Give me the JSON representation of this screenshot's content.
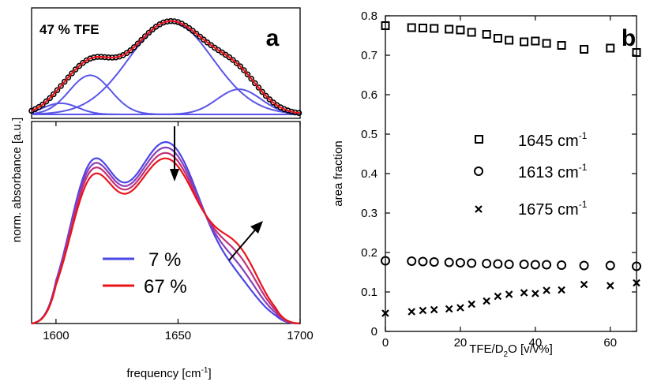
{
  "colors": {
    "blue": "#4b46e6",
    "red": "#e8141a",
    "fit": "#e8141a",
    "data": "#000000"
  },
  "panel_a": {
    "letter": "a",
    "top_label": "47 % TFE",
    "ylabel": "norm. absorbance [a.u.]",
    "xlabel_main": "frequency [cm",
    "xlabel_sup": "-1",
    "xlabel_end": "]",
    "xticks": [
      "1600",
      "1650",
      "1700"
    ],
    "legend": [
      {
        "label": "7 %",
        "color": "#4b46e6"
      },
      {
        "label": "67 %",
        "color": "#e8141a"
      }
    ]
  },
  "panel_b": {
    "letter": "b",
    "ylabel": "area fraction",
    "xlabel_main": "TFE/D",
    "xlabel_sub": "2",
    "xlabel_end": "O [v/v%]",
    "legend": [
      {
        "label": "1645 cm",
        "sup": "-1",
        "marker": "square"
      },
      {
        "label": "1613 cm",
        "sup": "-1",
        "marker": "circle"
      },
      {
        "label": "1675 cm",
        "sup": "-1",
        "marker": "x"
      }
    ]
  },
  "chart_data": [
    {
      "type": "line",
      "panel": "a-top",
      "xlim": [
        1590,
        1700
      ],
      "components": [
        {
          "center": 1602,
          "width": 7,
          "height": 0.12
        },
        {
          "center": 1614,
          "width": 8.5,
          "height": 0.42
        },
        {
          "center": 1647,
          "width": 17,
          "height": 1.0
        },
        {
          "center": 1675,
          "width": 9,
          "height": 0.27
        }
      ]
    },
    {
      "type": "line",
      "panel": "a-bottom",
      "xlim": [
        1590,
        1700
      ],
      "series": [
        {
          "tfe": 7,
          "p1": 0.72,
          "p2": 1.0,
          "p3": 0.1
        },
        {
          "tfe": 27,
          "p1": 0.7,
          "p2": 0.97,
          "p3": 0.14
        },
        {
          "tfe": 47,
          "p1": 0.68,
          "p2": 0.94,
          "p3": 0.18
        },
        {
          "tfe": 67,
          "p1": 0.66,
          "p2": 0.92,
          "p3": 0.22
        }
      ]
    },
    {
      "type": "scatter",
      "panel": "b",
      "xlim": [
        0,
        67
      ],
      "ylim": [
        0,
        0.8
      ],
      "xticks": [
        0,
        20,
        40,
        60
      ],
      "yticks": [
        0,
        0.1,
        0.2,
        0.3,
        0.4,
        0.5,
        0.6,
        0.7,
        0.8
      ],
      "series": [
        {
          "marker": "square",
          "points": [
            [
              0,
              0.775
            ],
            [
              7,
              0.77
            ],
            [
              10,
              0.769
            ],
            [
              13,
              0.768
            ],
            [
              17,
              0.766
            ],
            [
              20,
              0.764
            ],
            [
              23,
              0.758
            ],
            [
              27,
              0.753
            ],
            [
              30,
              0.743
            ],
            [
              33,
              0.738
            ],
            [
              37,
              0.734
            ],
            [
              40,
              0.736
            ],
            [
              43,
              0.73
            ],
            [
              47,
              0.725
            ],
            [
              53,
              0.715
            ],
            [
              60,
              0.718
            ],
            [
              67,
              0.707
            ]
          ]
        },
        {
          "marker": "circle",
          "points": [
            [
              0,
              0.179
            ],
            [
              7,
              0.178
            ],
            [
              10,
              0.177
            ],
            [
              13,
              0.176
            ],
            [
              17,
              0.175
            ],
            [
              20,
              0.174
            ],
            [
              23,
              0.173
            ],
            [
              27,
              0.172
            ],
            [
              30,
              0.171
            ],
            [
              33,
              0.17
            ],
            [
              37,
              0.17
            ],
            [
              40,
              0.169
            ],
            [
              43,
              0.169
            ],
            [
              47,
              0.168
            ],
            [
              53,
              0.167
            ],
            [
              60,
              0.167
            ],
            [
              67,
              0.165
            ]
          ]
        },
        {
          "marker": "x",
          "points": [
            [
              0,
              0.046
            ],
            [
              7,
              0.05
            ],
            [
              10,
              0.053
            ],
            [
              13,
              0.055
            ],
            [
              17,
              0.057
            ],
            [
              20,
              0.06
            ],
            [
              23,
              0.069
            ],
            [
              27,
              0.077
            ],
            [
              30,
              0.089
            ],
            [
              33,
              0.094
            ],
            [
              37,
              0.098
            ],
            [
              40,
              0.096
            ],
            [
              43,
              0.104
            ],
            [
              47,
              0.105
            ],
            [
              53,
              0.119
            ],
            [
              60,
              0.116
            ],
            [
              67,
              0.123
            ]
          ]
        }
      ]
    }
  ]
}
